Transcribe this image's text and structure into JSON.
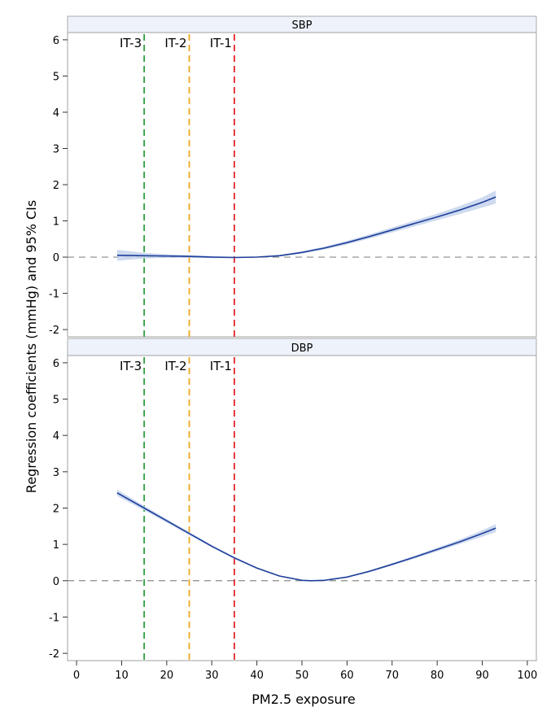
{
  "chart_data": {
    "type": "line",
    "xlabel": "PM2.5 exposure",
    "ylabel": "Regression coefficients (mmHg) and 95% CIs",
    "xlim": [
      -2,
      102
    ],
    "x_ticks": [
      0,
      10,
      20,
      30,
      40,
      50,
      60,
      70,
      80,
      90,
      100
    ],
    "ylim": [
      -2.2,
      6.2
    ],
    "y_ticks": [
      -2,
      -1,
      0,
      1,
      2,
      3,
      4,
      5,
      6
    ],
    "y_tick_labels": [
      "-2",
      "-1",
      "0",
      "1",
      "2",
      "3",
      "4",
      "5",
      "6"
    ],
    "reference_hline": 0,
    "reference_lines": [
      {
        "label": "IT-3",
        "x": 15,
        "color": "#2e9e3e"
      },
      {
        "label": "IT-2",
        "x": 25,
        "color": "#f0a820"
      },
      {
        "label": "IT-1",
        "x": 35,
        "color": "#e0262b"
      }
    ],
    "line_color": "#1f3f9b",
    "band_color": "#c5d4ec",
    "panels": [
      {
        "title": "SBP",
        "x": [
          9,
          15,
          20,
          25,
          30,
          35,
          40,
          45,
          50,
          55,
          60,
          65,
          70,
          75,
          80,
          85,
          90,
          93
        ],
        "y": [
          0.05,
          0.04,
          0.03,
          0.02,
          0.0,
          -0.01,
          0.0,
          0.04,
          0.13,
          0.25,
          0.4,
          0.57,
          0.75,
          0.93,
          1.11,
          1.3,
          1.51,
          1.66
        ],
        "lower": [
          -0.1,
          -0.04,
          -0.02,
          -0.02,
          -0.03,
          -0.03,
          -0.01,
          0.02,
          0.1,
          0.21,
          0.35,
          0.51,
          0.68,
          0.85,
          1.02,
          1.19,
          1.37,
          1.48
        ],
        "upper": [
          0.2,
          0.12,
          0.08,
          0.06,
          0.03,
          0.01,
          0.01,
          0.06,
          0.16,
          0.29,
          0.45,
          0.63,
          0.82,
          1.01,
          1.2,
          1.41,
          1.65,
          1.84
        ]
      },
      {
        "title": "DBP",
        "x": [
          9,
          15,
          20,
          25,
          30,
          35,
          40,
          45,
          50,
          52,
          55,
          60,
          65,
          70,
          75,
          80,
          85,
          90,
          93
        ],
        "y": [
          2.42,
          2.0,
          1.65,
          1.3,
          0.95,
          0.63,
          0.35,
          0.13,
          0.01,
          0.0,
          0.01,
          0.1,
          0.26,
          0.45,
          0.65,
          0.86,
          1.07,
          1.3,
          1.45
        ],
        "lower": [
          2.33,
          1.94,
          1.6,
          1.26,
          0.92,
          0.6,
          0.33,
          0.11,
          0.0,
          -0.01,
          0.0,
          0.09,
          0.24,
          0.42,
          0.61,
          0.81,
          1.01,
          1.21,
          1.34
        ],
        "upper": [
          2.51,
          2.06,
          1.7,
          1.34,
          0.98,
          0.66,
          0.37,
          0.15,
          0.02,
          0.01,
          0.02,
          0.11,
          0.28,
          0.48,
          0.69,
          0.91,
          1.13,
          1.39,
          1.56
        ]
      }
    ]
  }
}
